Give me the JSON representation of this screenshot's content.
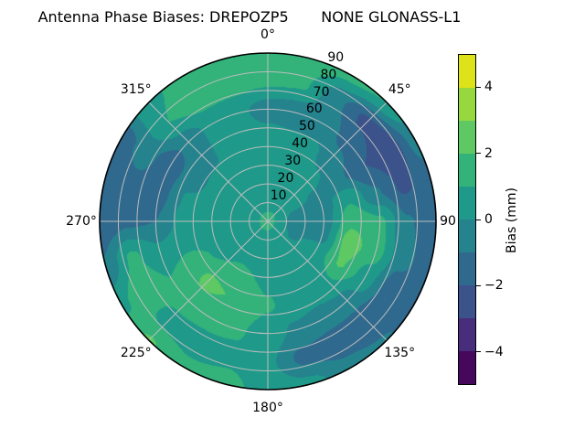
{
  "chart_data": {
    "type": "polar_contour",
    "title": "Antenna Phase Biases: DREPOZP5       NONE GLONASS-L1",
    "background": "#ffffff",
    "grid_color": "#bcbcbc",
    "theta_zero": "top",
    "theta_direction": "clockwise",
    "theta_tick_deg": [
      0,
      45,
      90,
      135,
      180,
      225,
      270,
      315
    ],
    "theta_tick_labels": [
      "0°",
      "45°",
      "90",
      "135°",
      "180°",
      "225°",
      "270°",
      "315°"
    ],
    "r_tick_values": [
      10,
      20,
      30,
      40,
      50,
      60,
      70,
      80,
      90
    ],
    "r_tick_labels": [
      "10",
      "20",
      "30",
      "40",
      "50",
      "60",
      "70",
      "80",
      "90"
    ],
    "r_max": 90,
    "r_label_angle_deg": 22.5,
    "levels": [
      -5,
      -4,
      -3,
      -2,
      -1,
      0,
      1,
      2,
      3,
      4,
      5
    ],
    "band_colors": [
      "#46085c",
      "#472d7b",
      "#3b528b",
      "#30698e",
      "#25838e",
      "#1f9a8a",
      "#33b37a",
      "#5ec962",
      "#97d83e",
      "#dde318"
    ],
    "grid": {
      "azimuth_deg": [
        0,
        15,
        30,
        45,
        60,
        75,
        90,
        105,
        120,
        135,
        150,
        165,
        180,
        195,
        210,
        225,
        240,
        255,
        270,
        285,
        300,
        315,
        330,
        345
      ],
      "radius_deg": [
        0,
        15,
        30,
        45,
        60,
        75,
        90
      ],
      "bias_mm": [
        [
          1.2,
          0.4,
          0.6,
          0.5,
          -0.5,
          1.2,
          1.6
        ],
        [
          1.2,
          0.4,
          0.6,
          0.3,
          -0.7,
          1.1,
          1.5
        ],
        [
          1.2,
          0.5,
          0.7,
          0.2,
          -0.5,
          -0.8,
          1.3
        ],
        [
          1.2,
          0.4,
          0.4,
          -0.3,
          -1.3,
          -2.3,
          1.0
        ],
        [
          1.2,
          0.2,
          -0.1,
          -0.9,
          -2.0,
          -2.8,
          -0.6
        ],
        [
          1.2,
          -0.2,
          -0.5,
          0.9,
          -0.9,
          -2.2,
          -1.3
        ],
        [
          1.2,
          -0.4,
          -0.5,
          1.8,
          1.2,
          -0.9,
          -1.7
        ],
        [
          1.2,
          -0.4,
          -0.4,
          2.5,
          1.4,
          -0.7,
          -1.6
        ],
        [
          1.2,
          -0.1,
          0.4,
          2.1,
          0.6,
          -1.6,
          -1.7
        ],
        [
          1.2,
          0.1,
          0.4,
          0.9,
          -0.4,
          -1.8,
          -0.9
        ],
        [
          1.2,
          0.2,
          0.4,
          0.6,
          -0.6,
          -1.5,
          -0.7
        ],
        [
          1.2,
          0.3,
          0.5,
          0.7,
          -0.2,
          -1.3,
          0.3
        ],
        [
          1.2,
          0.4,
          0.7,
          1.1,
          0.5,
          0.2,
          0.6
        ],
        [
          1.2,
          0.4,
          1.0,
          1.6,
          1.1,
          0.8,
          1.3
        ],
        [
          1.2,
          0.4,
          1.1,
          2.0,
          1.4,
          0.5,
          1.3
        ],
        [
          1.2,
          0.4,
          1.0,
          2.2,
          1.5,
          0.6,
          2.1
        ],
        [
          1.2,
          0.3,
          0.8,
          1.5,
          1.0,
          1.8,
          0.8
        ],
        [
          1.2,
          0.2,
          0.4,
          0.7,
          0.2,
          1.2,
          -0.9
        ],
        [
          1.2,
          0.2,
          0.3,
          0.4,
          -1.0,
          -1.2,
          -1.8
        ],
        [
          1.2,
          0.2,
          0.4,
          0.1,
          -1.4,
          -1.3,
          -2.0
        ],
        [
          1.2,
          0.3,
          0.4,
          -0.3,
          -1.6,
          -0.6,
          -1.5
        ],
        [
          1.2,
          0.3,
          0.5,
          -0.2,
          -0.6,
          1.0,
          0.9
        ],
        [
          1.2,
          0.4,
          0.5,
          0.2,
          0.3,
          1.5,
          1.2
        ],
        [
          1.2,
          0.4,
          0.6,
          0.5,
          0.2,
          1.4,
          1.5
        ]
      ]
    },
    "colorbar": {
      "label": "Bias (mm)",
      "vmin": -5,
      "vmax": 5,
      "tick_values": [
        4,
        2,
        0,
        -2,
        -4
      ],
      "tick_labels": [
        "4",
        "2",
        "0",
        "−2",
        "−4"
      ]
    }
  }
}
